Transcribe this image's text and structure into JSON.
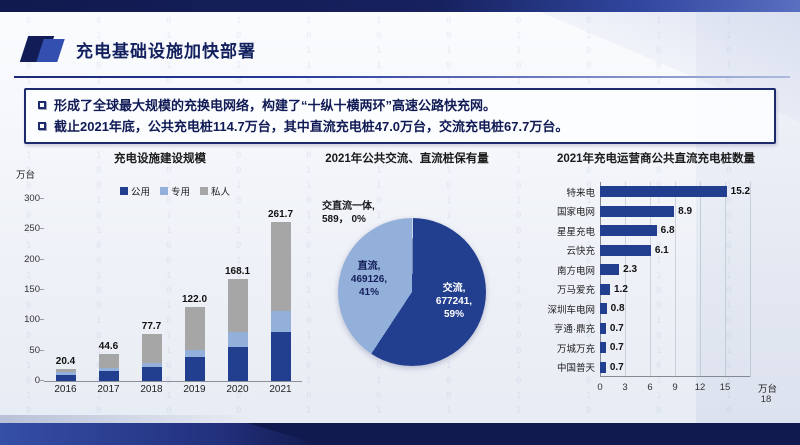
{
  "slide": {
    "title": "充电基础设施加快部署",
    "bullets": [
      "形成了全球最大规模的充换电网络，构建了“十纵十横两环”高速公路快充网。",
      "截止2021年底，公共充电桩114.7万台，其中直流充电桩47.0万台，交流充电桩67.7万台。"
    ]
  },
  "colors": {
    "accent_dark": "#13205e",
    "bar_dark_blue": "#223e8f",
    "bar_light_blue": "#93b0da",
    "bar_gray": "#a6a6a6",
    "band_navy": "#111a4e"
  },
  "chart_data": [
    {
      "type": "bar",
      "title": "充电设施建设规模",
      "ylabel": "万台",
      "categories": [
        "2016",
        "2017",
        "2018",
        "2019",
        "2020",
        "2021"
      ],
      "series": [
        {
          "name": "公用",
          "key": "public",
          "color": "#223e8f",
          "values": [
            10.0,
            16.0,
            23.0,
            39.0,
            55.8,
            81.0
          ]
        },
        {
          "name": "专用",
          "key": "dedicated",
          "color": "#93b0da",
          "values": [
            4.1,
            5.4,
            7.0,
            12.6,
            24.9,
            33.7
          ]
        },
        {
          "name": "私人",
          "key": "private",
          "color": "#a6a6a6",
          "values": [
            6.3,
            23.2,
            47.7,
            70.4,
            87.4,
            147.0
          ]
        }
      ],
      "totals": [
        "20.4",
        "44.6",
        "77.7",
        "122.0",
        "168.1",
        "261.7"
      ],
      "ylim": [
        0,
        300
      ],
      "yticks": [
        0,
        50,
        100,
        150,
        200,
        250,
        300
      ],
      "legend_position": "top"
    },
    {
      "type": "pie",
      "title": "2021年公共交流、直流桩保有量",
      "slices": [
        {
          "name": "交流",
          "key": "ac",
          "value": 677241,
          "pct": "59%",
          "color": "#223e8f",
          "lines": [
            "交流,",
            "677241,",
            "59%"
          ]
        },
        {
          "name": "直流",
          "key": "dc",
          "value": 469126,
          "pct": "41%",
          "color": "#93b0da",
          "lines": [
            "直流,",
            "469126,",
            "41%"
          ]
        },
        {
          "name": "交直流一体",
          "key": "acdc",
          "value": 589,
          "pct": "0%",
          "color": "#c7d4ea",
          "lines": [
            "交直流一体,",
            "589， 0%"
          ]
        }
      ]
    },
    {
      "type": "bar",
      "orientation": "horizontal",
      "title": "2021年充电运营商公共直流充电桩数量",
      "categories": [
        "特来电",
        "国家电网",
        "星星充电",
        "云快充",
        "南方电网",
        "万马爱充",
        "深圳车电网",
        "亨通·鼎充",
        "万城万充",
        "中国普天"
      ],
      "values": [
        15.2,
        8.9,
        6.8,
        6.1,
        2.3,
        1.2,
        0.8,
        0.7,
        0.7,
        0.7
      ],
      "xlim": [
        0,
        18
      ],
      "xticks": [
        0,
        3,
        6,
        9,
        12,
        15,
        18
      ],
      "xlabel": "万台",
      "bar_color": "#223e8f",
      "grid": "vertical"
    }
  ]
}
